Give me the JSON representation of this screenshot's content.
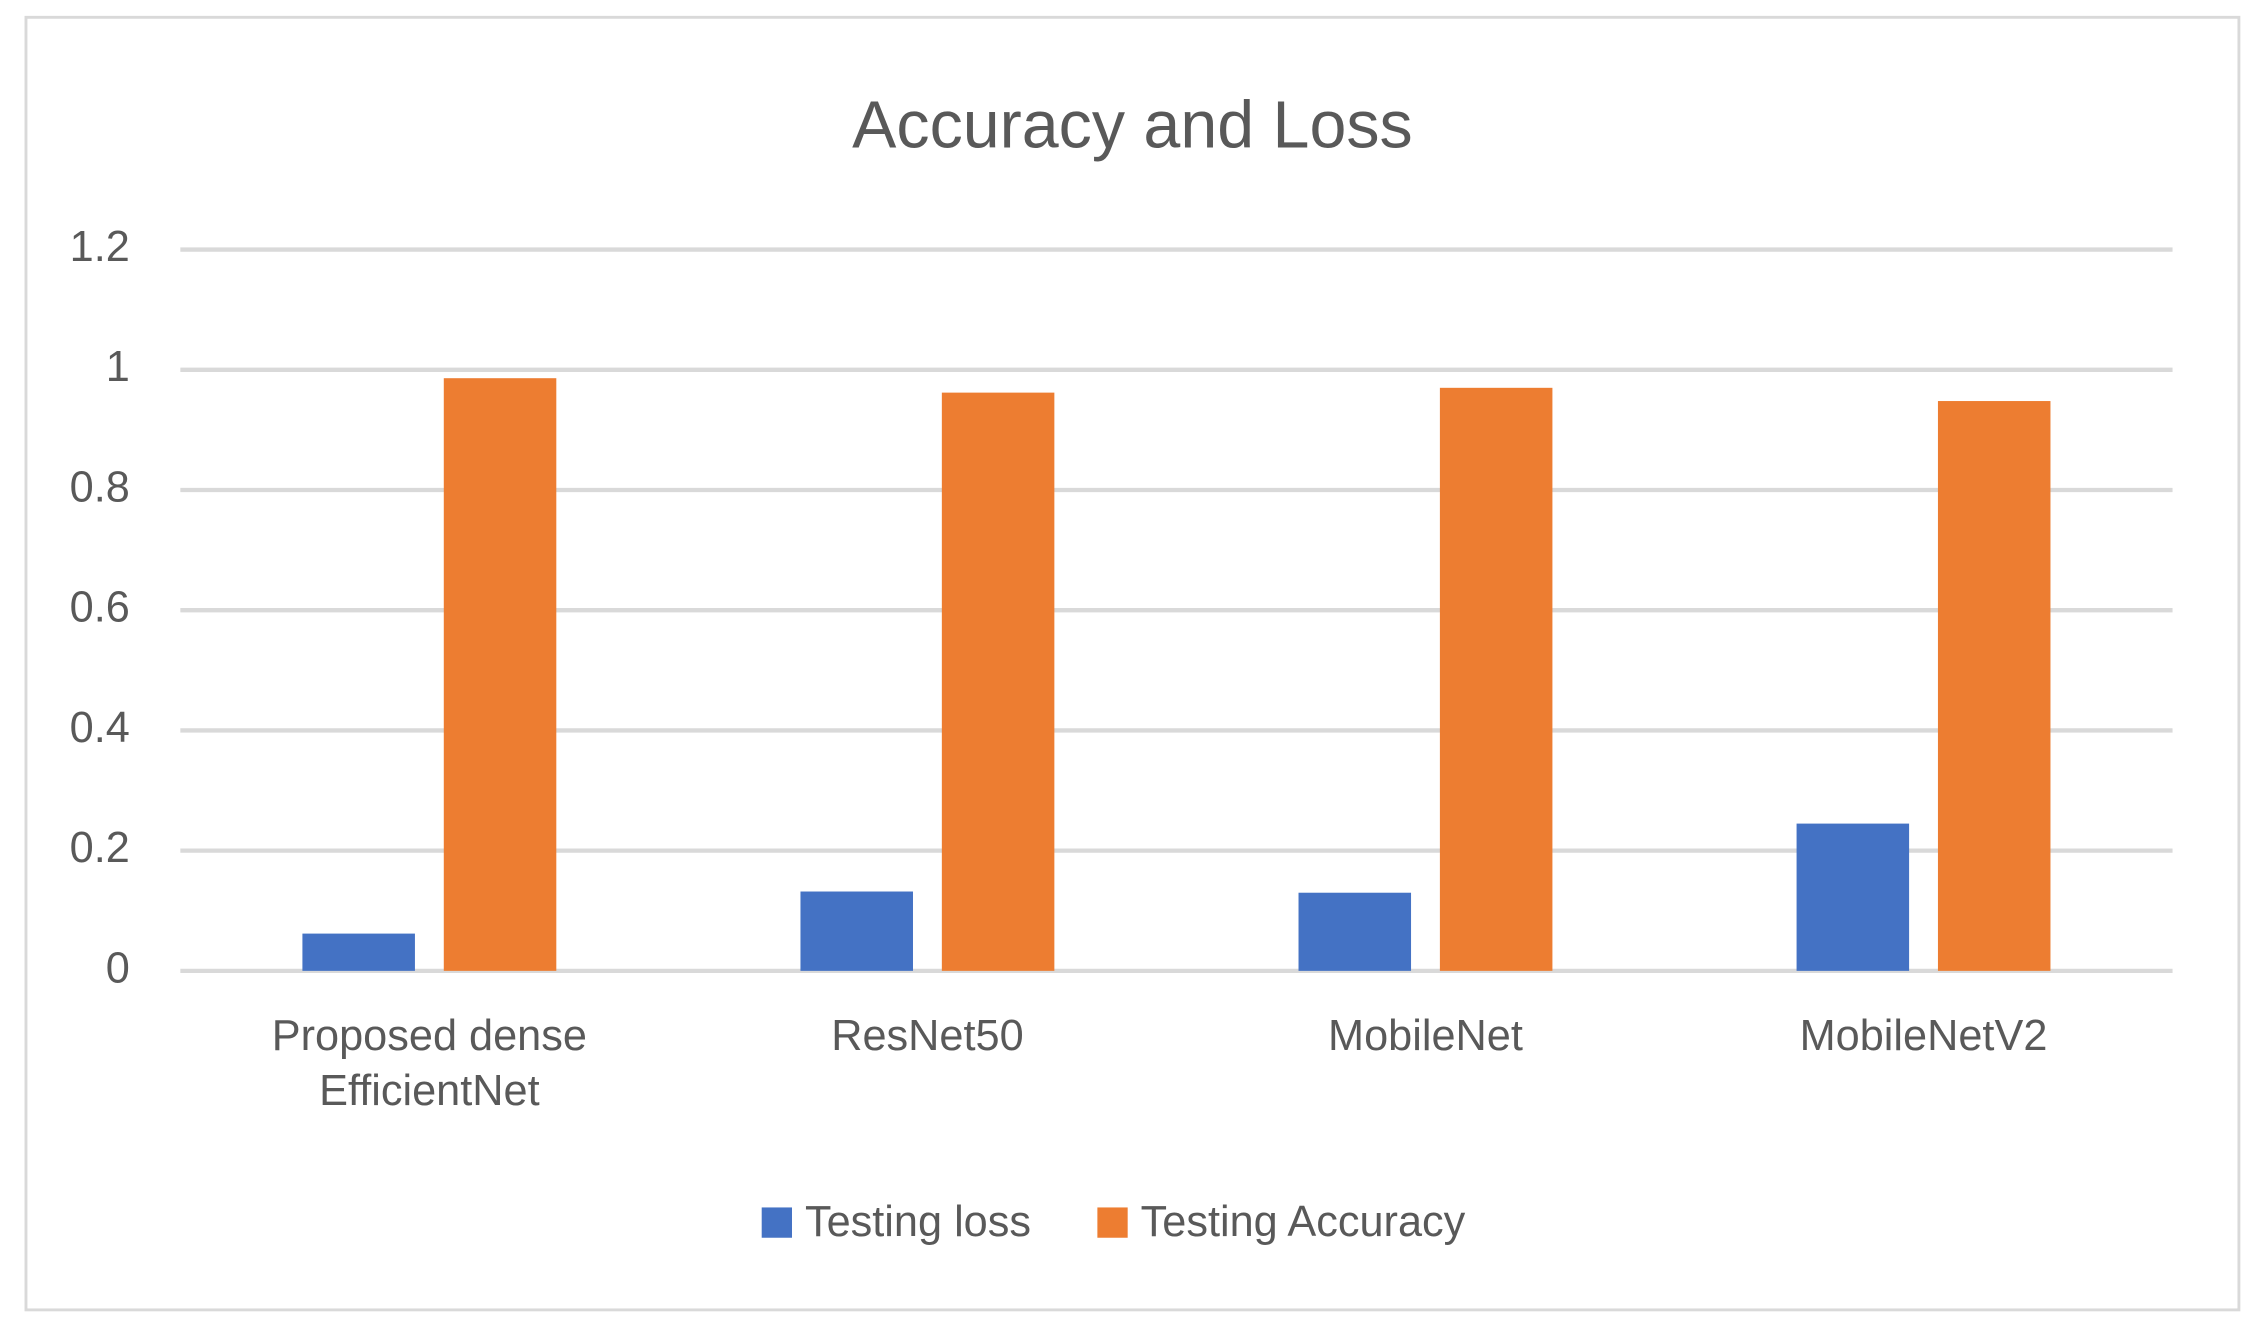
{
  "chart_data": {
    "type": "bar",
    "title": "Accuracy and Loss",
    "categories": [
      "Proposed dense EfficientNet",
      "ResNet50",
      "MobileNet",
      "MobileNetV2"
    ],
    "series": [
      {
        "name": "Testing loss",
        "color": "#4472c4",
        "values": [
          0.062,
          0.132,
          0.13,
          0.245
        ]
      },
      {
        "name": "Testing Accuracy",
        "color": "#ed7d31",
        "values": [
          0.986,
          0.962,
          0.97,
          0.948
        ]
      }
    ],
    "ylim": [
      0,
      1.2
    ],
    "yticks": [
      0,
      0.2,
      0.4,
      0.6,
      0.8,
      1,
      1.2
    ],
    "grid": true,
    "legend": "bottom"
  }
}
